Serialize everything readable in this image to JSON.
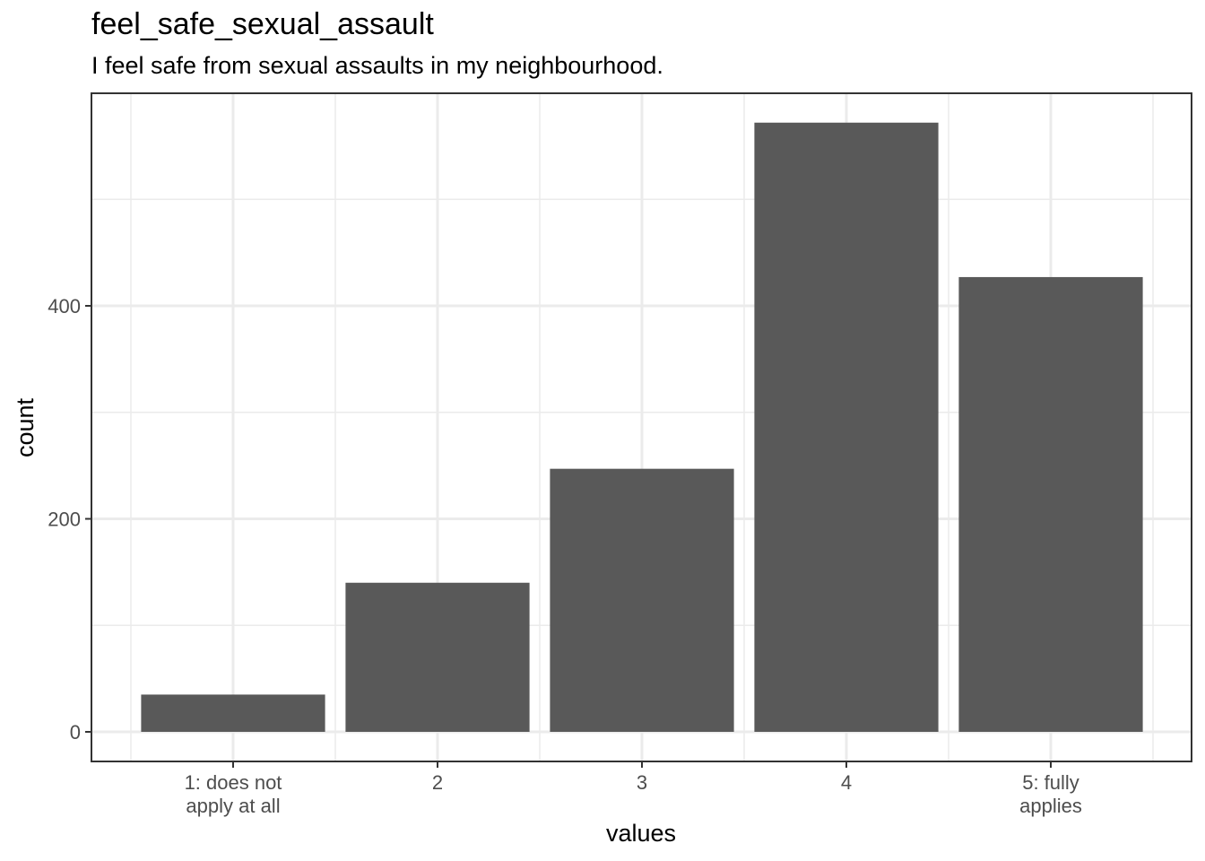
{
  "chart_data": {
    "type": "bar",
    "title": "feel_safe_sexual_assault",
    "subtitle": "I feel safe from sexual assaults in my neighbourhood.",
    "xlabel": "values",
    "ylabel": "count",
    "categories": [
      [
        "1: does not",
        "apply at all"
      ],
      [
        "2"
      ],
      [
        "3"
      ],
      [
        "4"
      ],
      [
        "5: fully",
        "applies"
      ]
    ],
    "values": [
      35,
      140,
      247,
      572,
      427
    ],
    "yticks": [
      0,
      200,
      400
    ],
    "ylim": [
      -28,
      600
    ],
    "grid": true,
    "bar_color": "#595959",
    "grid_color": "#ebebeb",
    "panel_border_color": "#333333"
  }
}
